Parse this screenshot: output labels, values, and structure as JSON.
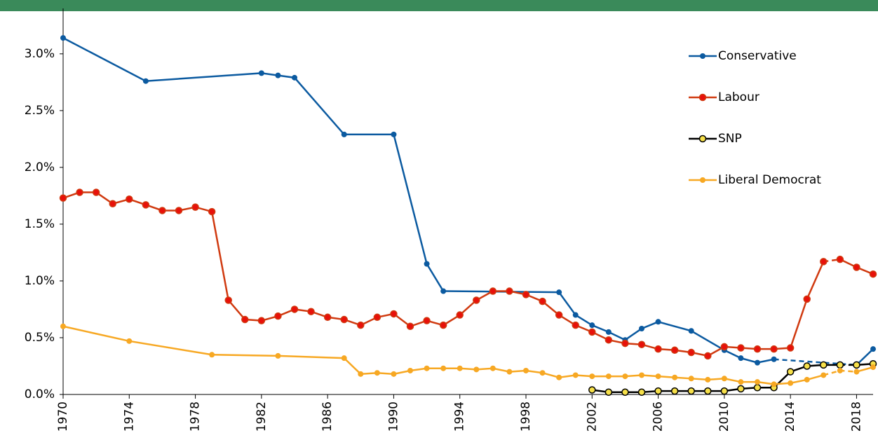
{
  "chart_data": {
    "type": "line",
    "xlim": [
      1970,
      2019
    ],
    "xticks": [
      1970,
      1974,
      1978,
      1982,
      1986,
      1990,
      1994,
      1998,
      2002,
      2006,
      2010,
      2014,
      2018
    ],
    "ylim": [
      0,
      3.4
    ],
    "yticks": [
      {
        "value": 0,
        "label": "0.0%"
      },
      {
        "value": 0.5,
        "label": "0.5%"
      },
      {
        "value": 1,
        "label": "1.0%"
      },
      {
        "value": 1.5,
        "label": "1.5%"
      },
      {
        "value": 2,
        "label": "2.0%"
      },
      {
        "value": 2.5,
        "label": "2.5%"
      },
      {
        "value": 3,
        "label": "3.0%"
      }
    ],
    "grid": false,
    "legend": "right",
    "series": [
      {
        "name": "Conservative",
        "color": "#0b5aa0",
        "marker_fill": "#0b5aa0",
        "dashed_ranges": [
          [
            2013,
            2018
          ]
        ],
        "x": [
          1970,
          1975,
          1982,
          1983,
          1984,
          1987,
          1990,
          1992,
          1993,
          2000,
          2001,
          2002,
          2003,
          2004,
          2005,
          2006,
          2008,
          2010,
          2011,
          2012,
          2013,
          2018,
          2019
        ],
        "values": [
          3.14,
          2.76,
          2.83,
          2.81,
          2.79,
          2.29,
          2.29,
          1.15,
          0.91,
          0.9,
          0.7,
          0.61,
          0.55,
          0.48,
          0.58,
          0.64,
          0.56,
          0.39,
          0.32,
          0.28,
          0.31,
          0.26,
          0.4
        ]
      },
      {
        "name": "Labour",
        "color": "#d03a10",
        "marker_fill": "#e8100a",
        "dashed_ranges": [
          [
            2016,
            2017
          ]
        ],
        "x": [
          1970,
          1971,
          1972,
          1973,
          1974,
          1975,
          1976,
          1977,
          1978,
          1979,
          1980,
          1981,
          1982,
          1983,
          1984,
          1985,
          1986,
          1987,
          1988,
          1989,
          1990,
          1991,
          1992,
          1993,
          1994,
          1995,
          1996,
          1997,
          1998,
          1999,
          2000,
          2001,
          2002,
          2003,
          2004,
          2005,
          2006,
          2007,
          2008,
          2009,
          2010,
          2011,
          2012,
          2013,
          2014,
          2015,
          2016,
          2017,
          2018,
          2019
        ],
        "values": [
          1.73,
          1.78,
          1.78,
          1.68,
          1.72,
          1.67,
          1.62,
          1.62,
          1.65,
          1.61,
          0.83,
          0.66,
          0.65,
          0.69,
          0.75,
          0.73,
          0.68,
          0.66,
          0.61,
          0.68,
          0.71,
          0.6,
          0.65,
          0.61,
          0.7,
          0.83,
          0.91,
          0.91,
          0.88,
          0.82,
          0.7,
          0.61,
          0.55,
          0.48,
          0.45,
          0.44,
          0.4,
          0.39,
          0.37,
          0.34,
          0.42,
          0.41,
          0.4,
          0.4,
          0.41,
          0.84,
          1.17,
          1.19,
          1.12,
          1.06
        ]
      },
      {
        "name": "SNP",
        "color": "#000000",
        "marker_fill": "#f6e04a",
        "dashed_ranges": [
          [
            2017,
            2018
          ]
        ],
        "x": [
          2002,
          2003,
          2004,
          2005,
          2006,
          2007,
          2008,
          2009,
          2010,
          2011,
          2012,
          2013,
          2014,
          2015,
          2016,
          2017,
          2018,
          2019
        ],
        "values": [
          0.04,
          0.02,
          0.02,
          0.02,
          0.03,
          0.03,
          0.03,
          0.03,
          0.03,
          0.05,
          0.06,
          0.06,
          0.2,
          0.25,
          0.26,
          0.26,
          0.26,
          0.27
        ]
      },
      {
        "name": "Liberal Democrat",
        "color": "#f7a823",
        "marker_fill": "#f7a823",
        "dashed_ranges": [
          [
            2016,
            2018
          ]
        ],
        "x": [
          1970,
          1974,
          1979,
          1983,
          1987,
          1988,
          1989,
          1990,
          1991,
          1992,
          1993,
          1994,
          1995,
          1996,
          1997,
          1998,
          1999,
          2000,
          2001,
          2002,
          2003,
          2004,
          2005,
          2006,
          2007,
          2008,
          2009,
          2010,
          2011,
          2012,
          2013,
          2014,
          2015,
          2016,
          2017,
          2018,
          2019
        ],
        "values": [
          0.6,
          0.47,
          0.35,
          0.34,
          0.32,
          0.18,
          0.19,
          0.18,
          0.21,
          0.23,
          0.23,
          0.23,
          0.22,
          0.23,
          0.2,
          0.21,
          0.19,
          0.15,
          0.17,
          0.16,
          0.16,
          0.16,
          0.17,
          0.16,
          0.15,
          0.14,
          0.13,
          0.14,
          0.11,
          0.11,
          0.09,
          0.1,
          0.13,
          0.17,
          0.21,
          0.2,
          0.24
        ]
      }
    ]
  }
}
